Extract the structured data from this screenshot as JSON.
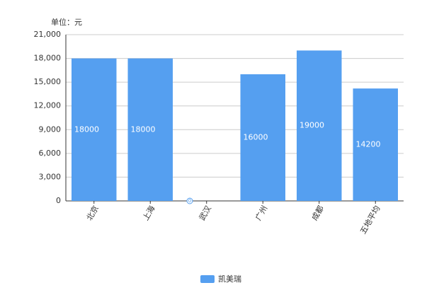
{
  "chart_data": {
    "type": "bar",
    "y_axis_label": "单位：元",
    "categories": [
      "北京",
      "上海",
      "武汉",
      "广州",
      "成都",
      "五地平均"
    ],
    "series": [
      {
        "name": "凯美瑞",
        "color": "#559ff0",
        "values": [
          18000,
          18000,
          0,
          16000,
          19000,
          14200
        ]
      }
    ],
    "ylim": [
      0,
      21000
    ],
    "yticks": [
      0,
      {
        "value": 3000,
        "label": "3,000"
      },
      {
        "value": 6000,
        "label": "6,000"
      },
      {
        "value": 9000,
        "label": "9,000"
      },
      {
        "value": 12000,
        "label": "12,000"
      },
      {
        "value": 15000,
        "label": "15,000"
      },
      {
        "value": 18000,
        "label": "18,000"
      },
      {
        "value": 21000,
        "label": "21,000"
      }
    ],
    "grid": true,
    "legend": "bottom"
  }
}
